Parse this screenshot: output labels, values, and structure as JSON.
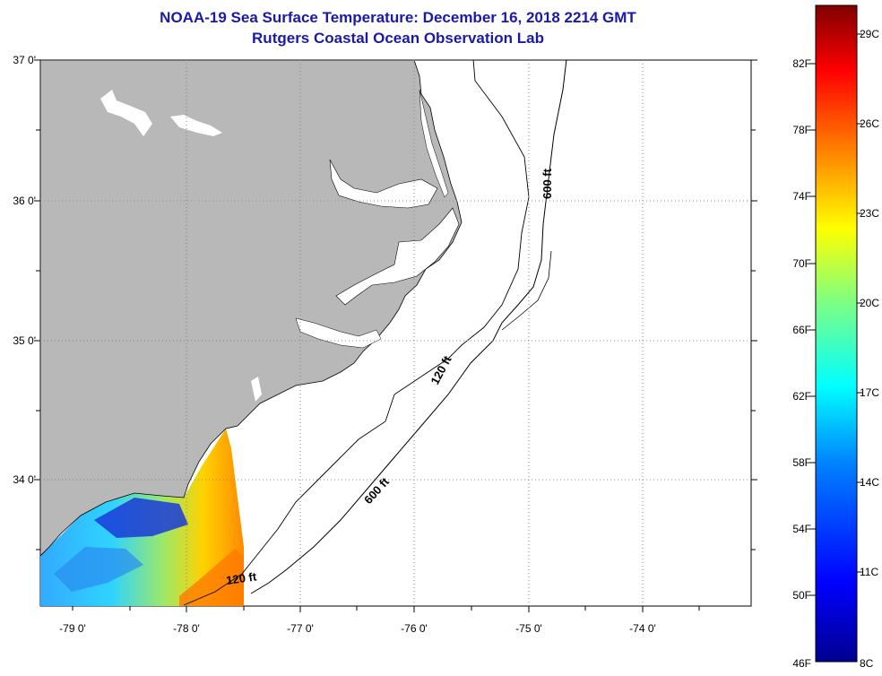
{
  "header": {
    "title": "NOAA-19 Sea Surface Temperature:  December 16, 2018 2214 GMT",
    "subtitle": "Rutgers Coastal Ocean Observation Lab"
  },
  "map": {
    "lat_labels": [
      "37 0'",
      "36 0'",
      "35 0'",
      "34 0'"
    ],
    "lon_labels": [
      "-79 0'",
      "-78 0'",
      "-77 0'",
      "-76 0'",
      "-75 0'",
      "-74 0'"
    ],
    "colors": {
      "land": "#b8b8b8",
      "ocean_no_data": "#ffffff",
      "grid": "#888888",
      "coastline": "#000000"
    },
    "contour_labels": {
      "shelf_north_600": "600 ft",
      "shelf_mid_120": "120 ft",
      "shelf_mid_600": "600 ft",
      "shelf_south_120": "120 ft"
    }
  },
  "colorbar": {
    "unit_f_labels": [
      "82F",
      "78F",
      "74F",
      "70F",
      "66F",
      "62F",
      "58F",
      "54F",
      "50F",
      "46F"
    ],
    "unit_c_labels": [
      "29C",
      "26C",
      "23C",
      "20C",
      "17C",
      "14C",
      "11C",
      "8C"
    ],
    "range_celsius": [
      8,
      30
    ],
    "colors": [
      "#00008f",
      "#0000ff",
      "#0080ff",
      "#00ffff",
      "#80ff80",
      "#ffff00",
      "#ff8000",
      "#ff0000",
      "#800000"
    ]
  }
}
